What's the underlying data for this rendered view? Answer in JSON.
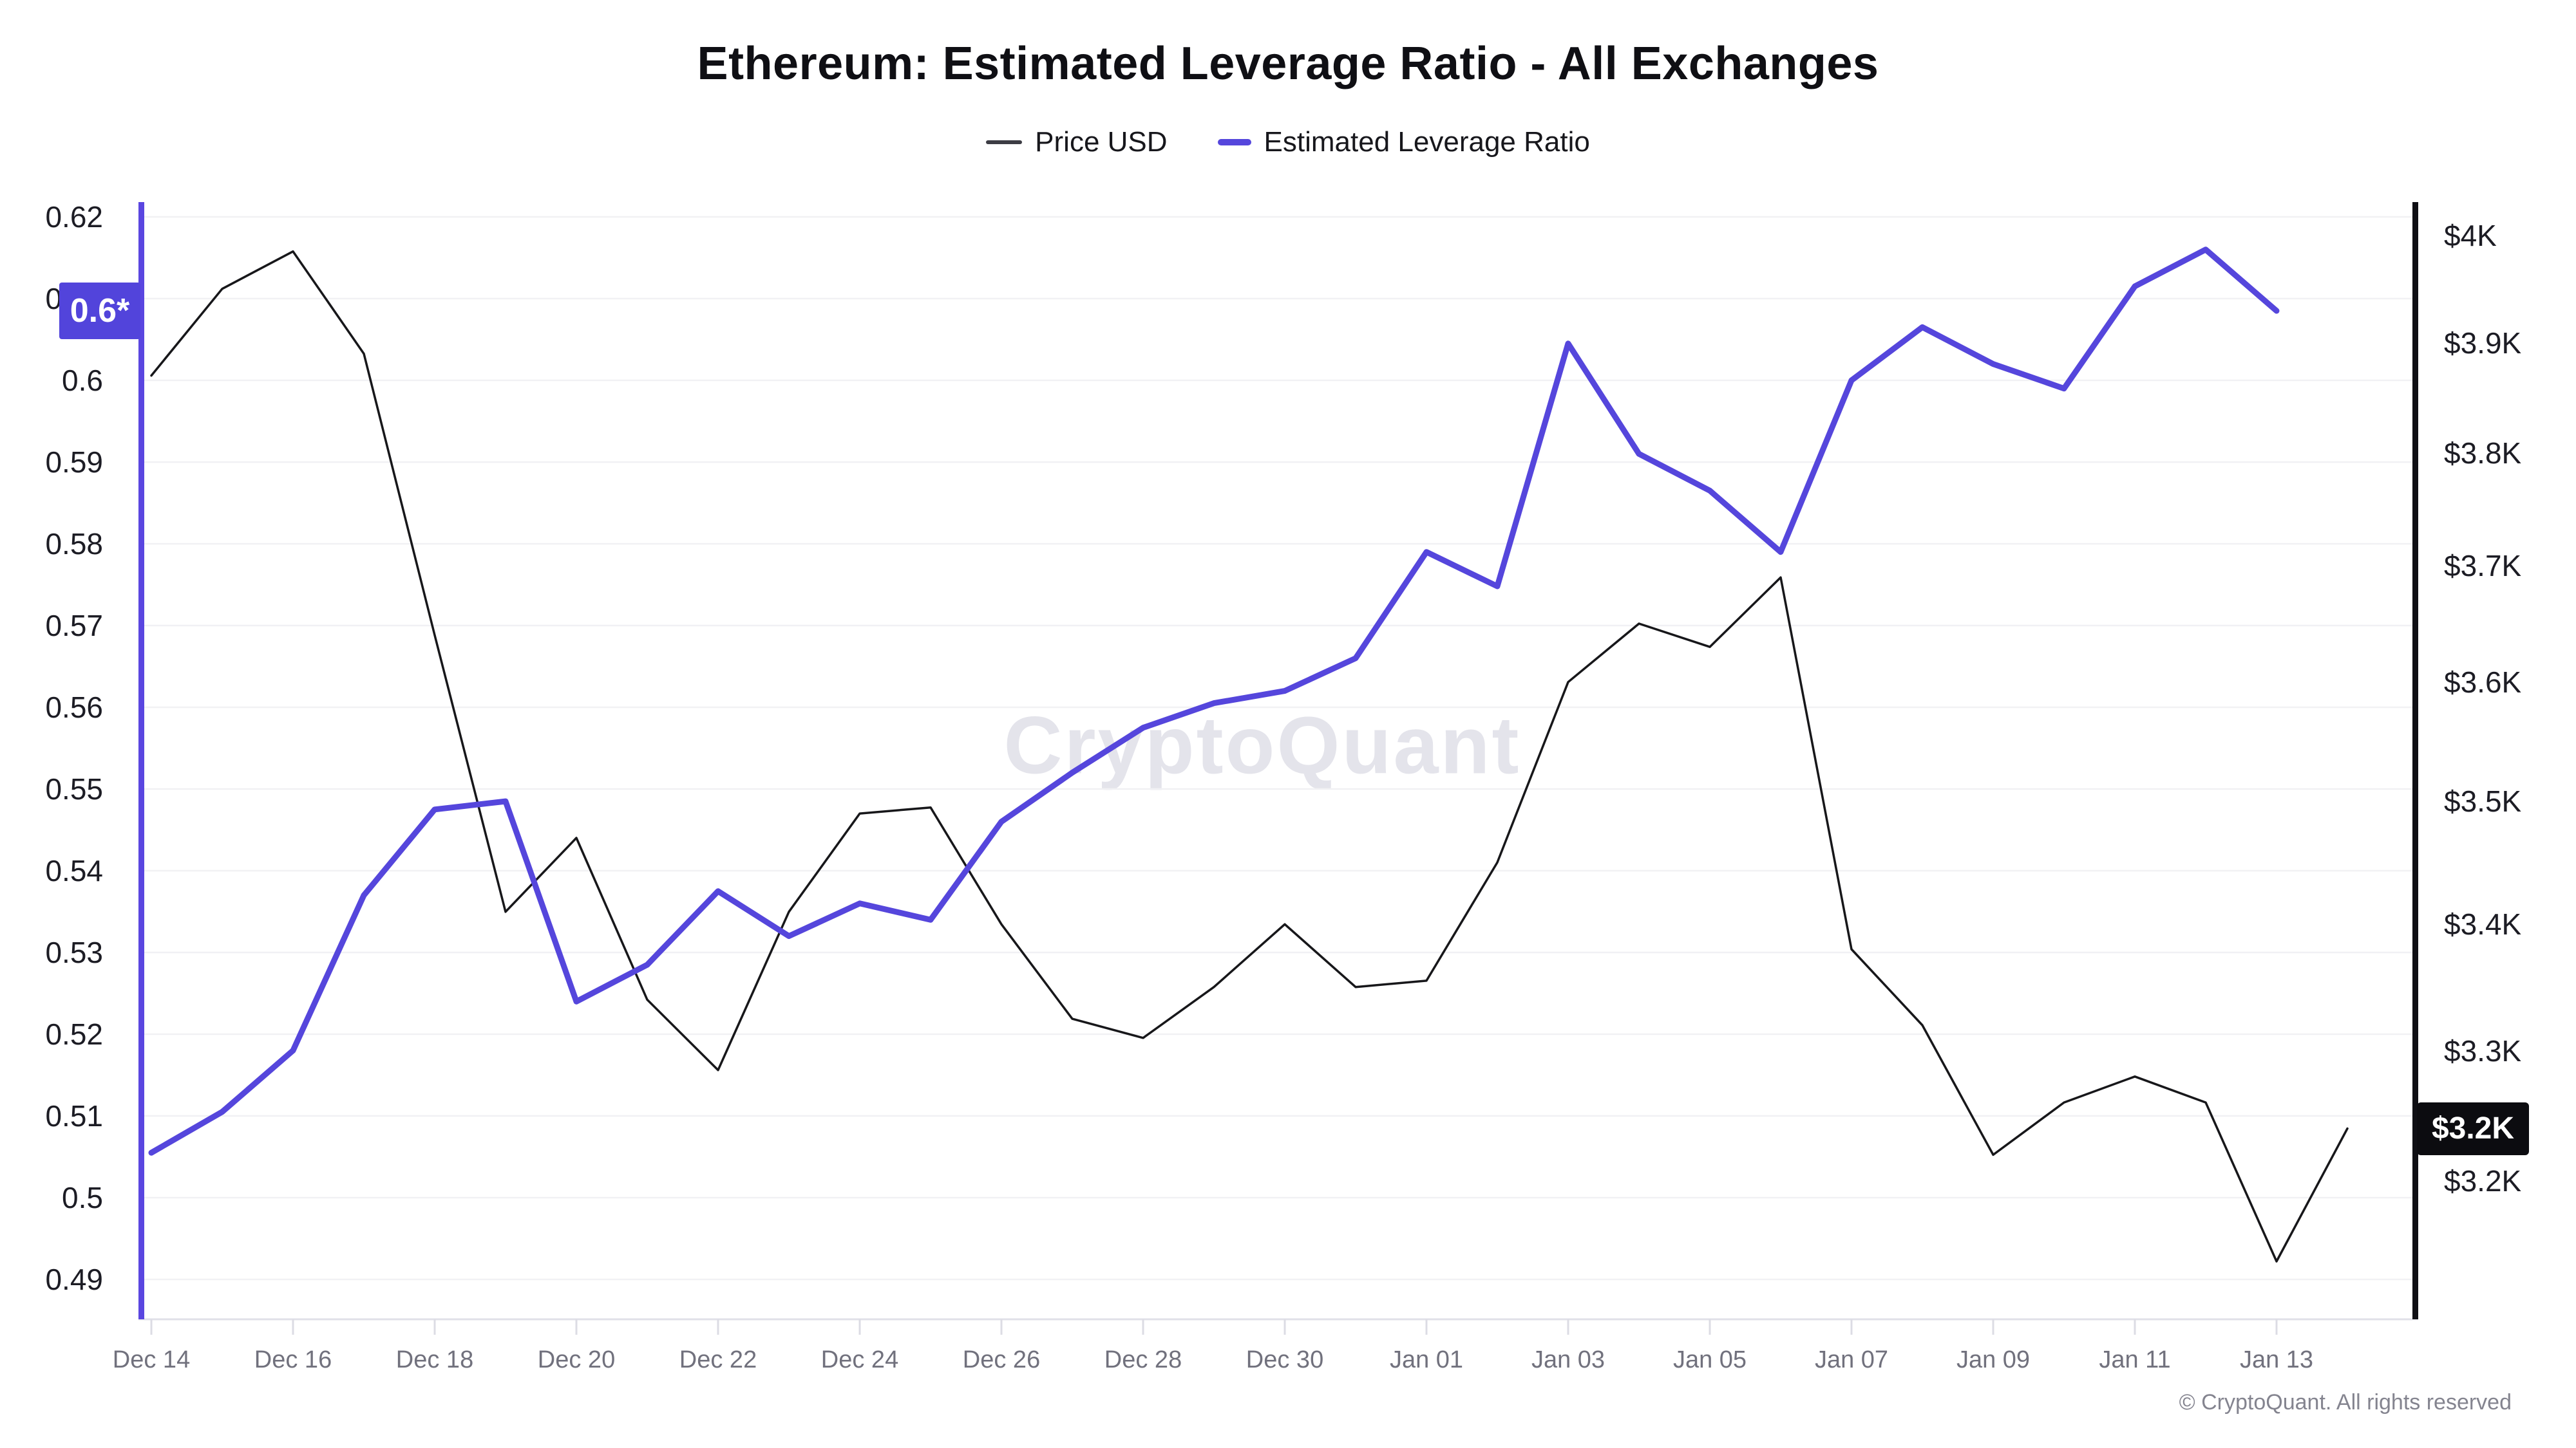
{
  "title": "Ethereum: Estimated Leverage Ratio - All Exchanges",
  "watermark": "CryptoQuant",
  "footer": "© CryptoQuant. All rights reserved",
  "colors": {
    "price_line": "#17171a",
    "leverage_line": "#5546dc",
    "leverage_axis": "#5a46e0",
    "price_axis": "#0f0f14",
    "gridline": "#f1f1f4",
    "bottom_axis": "#e0e0e8",
    "tick": "#dcdce4"
  },
  "legend": [
    {
      "label": "Price USD",
      "series": "price"
    },
    {
      "label": "Estimated Leverage Ratio",
      "series": "leverage"
    }
  ],
  "badges": {
    "left": {
      "text": "0.6*",
      "value": 0.6085
    },
    "right": {
      "text": "$3.2K",
      "value": 3.24
    }
  },
  "chart_data": {
    "type": "line",
    "x": [
      "Dec 14",
      "Dec 15",
      "Dec 16",
      "Dec 17",
      "Dec 18",
      "Dec 19",
      "Dec 20",
      "Dec 21",
      "Dec 22",
      "Dec 23",
      "Dec 24",
      "Dec 25",
      "Dec 26",
      "Dec 27",
      "Dec 28",
      "Dec 29",
      "Dec 30",
      "Dec 31",
      "Jan 01",
      "Jan 02",
      "Jan 03",
      "Jan 04",
      "Jan 05",
      "Jan 06",
      "Jan 07",
      "Jan 08",
      "Jan 09",
      "Jan 10",
      "Jan 11",
      "Jan 12",
      "Jan 13",
      "Jan 14"
    ],
    "x_tick_label_indices": [
      0,
      2,
      4,
      6,
      8,
      10,
      12,
      14,
      16,
      18,
      20,
      22,
      24,
      26,
      28,
      30
    ],
    "grid": "horizontal-only",
    "legend_position": "top-center",
    "series": [
      {
        "name": "Price USD",
        "axis": "right",
        "color": "#17171a",
        "stroke_width": 3.5,
        "values": [
          3.87,
          3.95,
          3.985,
          3.89,
          3.64,
          3.41,
          3.47,
          3.34,
          3.285,
          3.41,
          3.49,
          3.495,
          3.4,
          3.325,
          3.31,
          3.35,
          3.4,
          3.35,
          3.355,
          3.45,
          3.6,
          3.65,
          3.63,
          3.69,
          3.38,
          3.32,
          3.22,
          3.26,
          3.28,
          3.26,
          3.14,
          3.24
        ]
      },
      {
        "name": "Estimated Leverage Ratio",
        "axis": "left",
        "color": "#5546dc",
        "stroke_width": 9,
        "values": [
          0.5055,
          0.5105,
          0.518,
          0.537,
          0.5475,
          0.5485,
          0.524,
          0.5285,
          0.5375,
          0.532,
          0.536,
          0.534,
          0.546,
          0.552,
          0.5575,
          0.5605,
          0.562,
          0.566,
          0.579,
          0.5748,
          0.6045,
          0.591,
          0.5865,
          0.579,
          0.6,
          0.6065,
          0.602,
          0.599,
          0.6115,
          0.616,
          0.6085,
          null
        ]
      }
    ],
    "left_axis": {
      "title": "Estimated Leverage Ratio",
      "scale": "linear",
      "tick_labels": [
        "0.62",
        "0.61",
        "0.6",
        "0.59",
        "0.58",
        "0.57",
        "0.56",
        "0.55",
        "0.54",
        "0.53",
        "0.52",
        "0.51",
        "0.5",
        "0.49"
      ],
      "tick_values": [
        0.62,
        0.61,
        0.6,
        0.59,
        0.58,
        0.57,
        0.56,
        0.55,
        0.54,
        0.53,
        0.52,
        0.51,
        0.5,
        0.49
      ],
      "range": [
        0.49,
        0.62
      ]
    },
    "right_axis": {
      "title": "Price USD",
      "scale": "log",
      "tick_labels": [
        "$4K",
        "$3.9K",
        "$3.8K",
        "$3.7K",
        "$3.6K",
        "$3.5K",
        "$3.4K",
        "$3.3K",
        "$3.2K"
      ],
      "tick_values": [
        4.0,
        3.9,
        3.8,
        3.7,
        3.6,
        3.5,
        3.4,
        3.3,
        3.2
      ],
      "range": [
        3.1,
        4.0
      ]
    }
  }
}
